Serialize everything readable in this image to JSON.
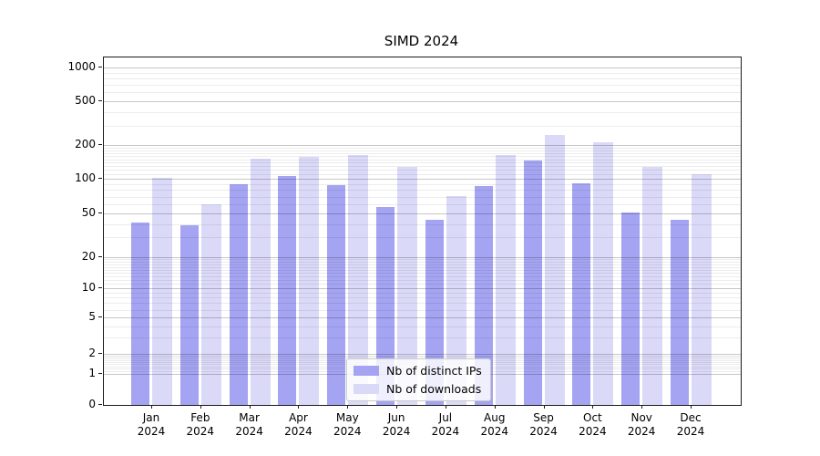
{
  "chart_data": {
    "type": "bar",
    "title": "SIMD 2024",
    "year_label": "2024",
    "categories": [
      "Jan",
      "Feb",
      "Mar",
      "Apr",
      "May",
      "Jun",
      "Jul",
      "Aug",
      "Sep",
      "Oct",
      "Nov",
      "Dec"
    ],
    "series": [
      {
        "name": "Nb of distinct IPs",
        "color": "#a4a4f2",
        "values": [
          41,
          39,
          90,
          105,
          88,
          57,
          44,
          86,
          147,
          91,
          51,
          44
        ]
      },
      {
        "name": "Nb of downloads",
        "color": "#dadaf8",
        "values": [
          101,
          60,
          152,
          157,
          162,
          127,
          71,
          163,
          246,
          212,
          127,
          110
        ]
      }
    ],
    "yticks": [
      0,
      1,
      2,
      5,
      10,
      20,
      50,
      100,
      200,
      500,
      1000
    ],
    "yscale": "symlog",
    "xlabel": "",
    "ylabel": "",
    "grid": "on",
    "legend_position": "lower center"
  }
}
